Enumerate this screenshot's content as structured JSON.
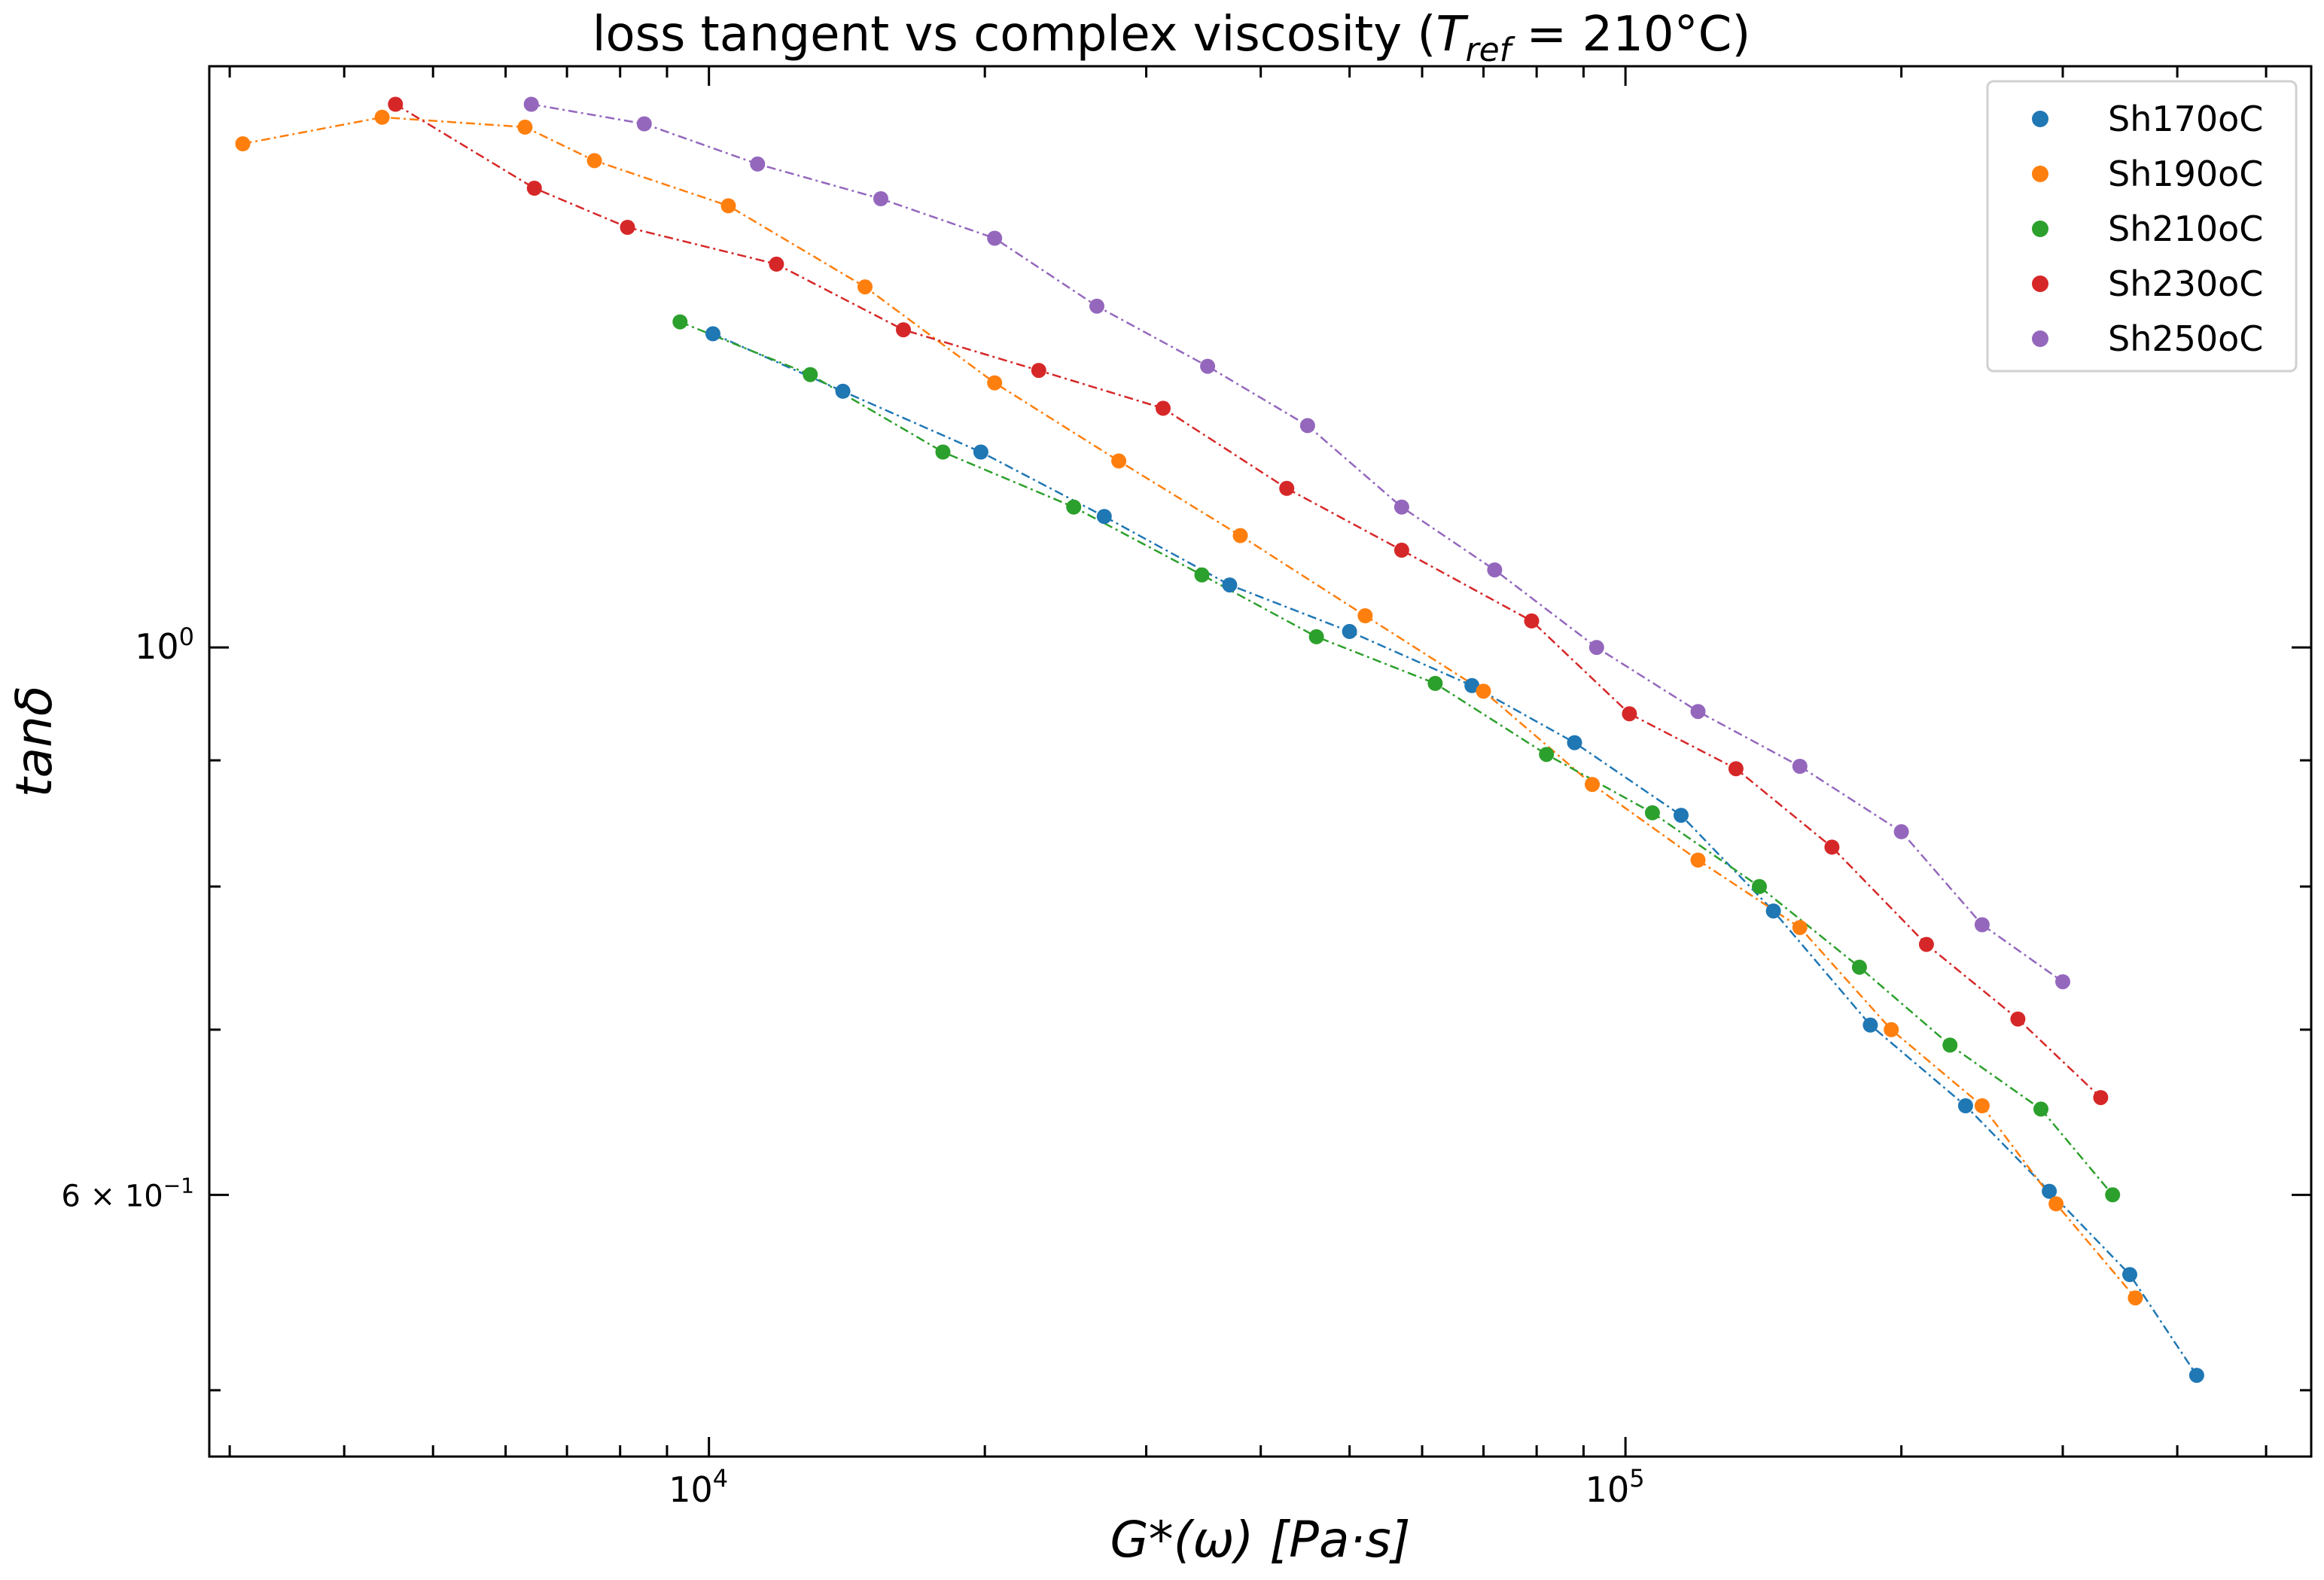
{
  "chart_data": {
    "type": "scatter",
    "title_main": "loss tangent vs complex viscosity (",
    "title_T": "T",
    "title_sub": "ref",
    "title_rest": " = 210°C)",
    "xlabel": "G*(ω)    [Pa·s]",
    "ylabel": "tanδ",
    "x_scale": "log",
    "y_scale": "log",
    "xlim": [
      2850,
      560000
    ],
    "ylim": [
      0.47,
      1.72
    ],
    "x_ticks": [
      {
        "value": 10000,
        "base": "10",
        "exp": "4"
      },
      {
        "value": 100000,
        "base": "10",
        "exp": "5"
      }
    ],
    "y_ticks": [
      {
        "value": 1.0,
        "label": "10",
        "exp": "0"
      },
      {
        "value": 0.6,
        "label": "6 × 10",
        "exp": "−1"
      }
    ],
    "legend_position": "top-right",
    "grid": false,
    "series": [
      {
        "name": "Sh170oC",
        "color": "#1f77b4",
        "x": [
          10100,
          14000,
          19800,
          27000,
          37000,
          50000,
          68000,
          88000,
          115000,
          145000,
          185000,
          235000,
          290000,
          355000,
          420000
        ],
        "y": [
          1.34,
          1.27,
          1.2,
          1.13,
          1.06,
          1.015,
          0.965,
          0.915,
          0.855,
          0.782,
          0.703,
          0.652,
          0.602,
          0.557,
          0.507
        ]
      },
      {
        "name": "Sh190oC",
        "color": "#ff7f0e",
        "x": [
          3100,
          4400,
          6300,
          7500,
          10500,
          14800,
          20500,
          28000,
          38000,
          52000,
          70000,
          92000,
          120000,
          155000,
          195000,
          245000,
          295000,
          360000
        ],
        "y": [
          1.6,
          1.64,
          1.625,
          1.575,
          1.51,
          1.4,
          1.28,
          1.19,
          1.11,
          1.03,
          0.96,
          0.88,
          0.82,
          0.77,
          0.7,
          0.652,
          0.595,
          0.545
        ]
      },
      {
        "name": "Sh210oC",
        "color": "#2ca02c",
        "x": [
          9300,
          12900,
          18000,
          25000,
          34500,
          46000,
          62000,
          82000,
          107000,
          140000,
          180000,
          226000,
          284000,
          340000
        ],
        "y": [
          1.355,
          1.29,
          1.2,
          1.14,
          1.07,
          1.01,
          0.967,
          0.905,
          0.857,
          0.8,
          0.742,
          0.69,
          0.65,
          0.6
        ]
      },
      {
        "name": "Sh230oC",
        "color": "#d62728",
        "x": [
          4550,
          6450,
          8150,
          11850,
          16300,
          22900,
          31300,
          42700,
          57000,
          79000,
          101000,
          132000,
          168000,
          213000,
          268000,
          330000
        ],
        "y": [
          1.66,
          1.535,
          1.48,
          1.43,
          1.345,
          1.295,
          1.25,
          1.16,
          1.095,
          1.025,
          0.94,
          0.893,
          0.83,
          0.758,
          0.707,
          0.657
        ]
      },
      {
        "name": "Sh250oC",
        "color": "#9467bd",
        "x": [
          6400,
          8500,
          11300,
          15400,
          20500,
          26500,
          35000,
          45000,
          57000,
          72000,
          93000,
          120000,
          155000,
          200000,
          245000,
          300000
        ],
        "y": [
          1.66,
          1.63,
          1.57,
          1.52,
          1.465,
          1.375,
          1.3,
          1.23,
          1.14,
          1.075,
          1.0,
          0.942,
          0.895,
          0.842,
          0.772,
          0.732
        ]
      }
    ]
  }
}
